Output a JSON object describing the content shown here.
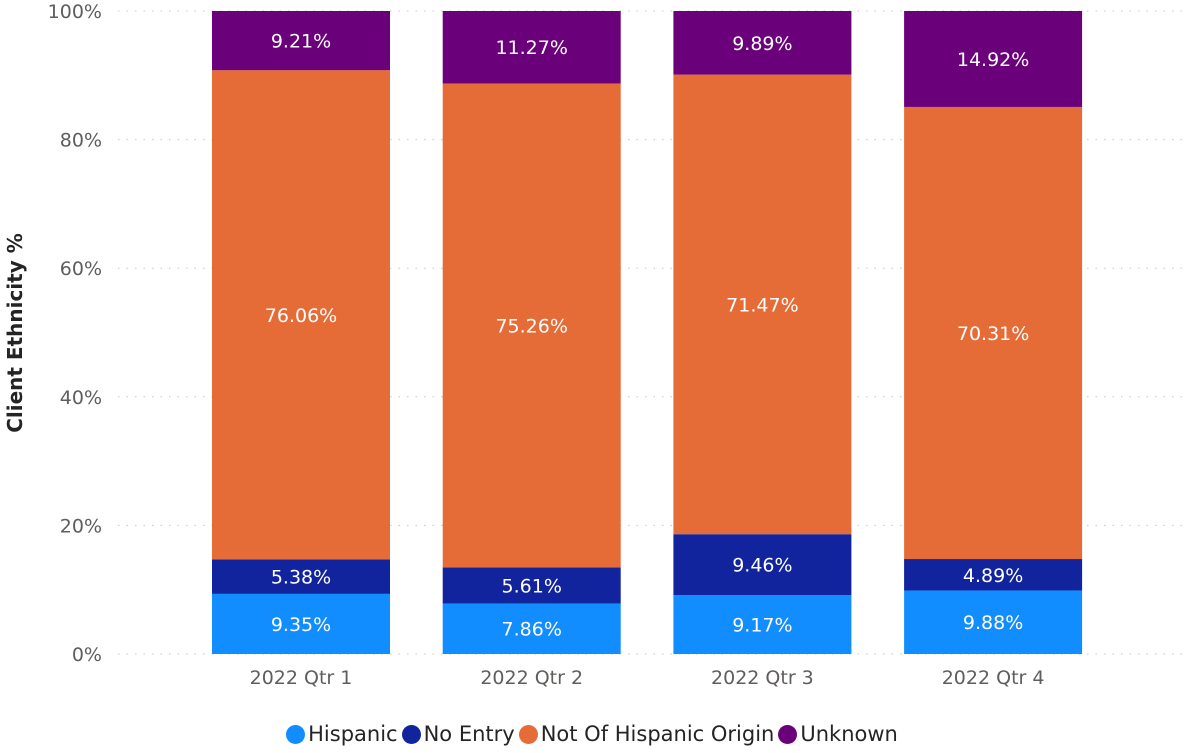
{
  "chart_data": {
    "type": "bar",
    "stacked": "percent",
    "categories": [
      "2022 Qtr 1",
      "2022 Qtr 2",
      "2022 Qtr 3",
      "2022 Qtr 4"
    ],
    "series": [
      {
        "name": "Hispanic",
        "color": "#118dff",
        "values": [
          9.35,
          7.86,
          9.17,
          9.88
        ],
        "labels": [
          "9.35%",
          "7.86%",
          "9.17%",
          "9.88%"
        ]
      },
      {
        "name": "No Entry",
        "color": "#12239e",
        "values": [
          5.38,
          5.61,
          9.46,
          4.89
        ],
        "labels": [
          "5.38%",
          "5.61%",
          "9.46%",
          "4.89%"
        ]
      },
      {
        "name": "Not Of Hispanic Origin",
        "color": "#e66c37",
        "values": [
          76.06,
          75.26,
          71.47,
          70.31
        ],
        "labels": [
          "76.06%",
          "75.26%",
          "71.47%",
          "70.31%"
        ]
      },
      {
        "name": "Unknown",
        "color": "#6b007b",
        "values": [
          9.21,
          11.27,
          9.89,
          14.92
        ],
        "labels": [
          "9.21%",
          "11.27%",
          "9.89%",
          "14.92%"
        ]
      }
    ],
    "ylabel": "Client Ethnicity %",
    "xlabel": "",
    "ylim": [
      0,
      100
    ],
    "yticks": [
      "0%",
      "20%",
      "40%",
      "60%",
      "80%",
      "100%"
    ],
    "grid": true,
    "legend_position": "bottom-center"
  }
}
